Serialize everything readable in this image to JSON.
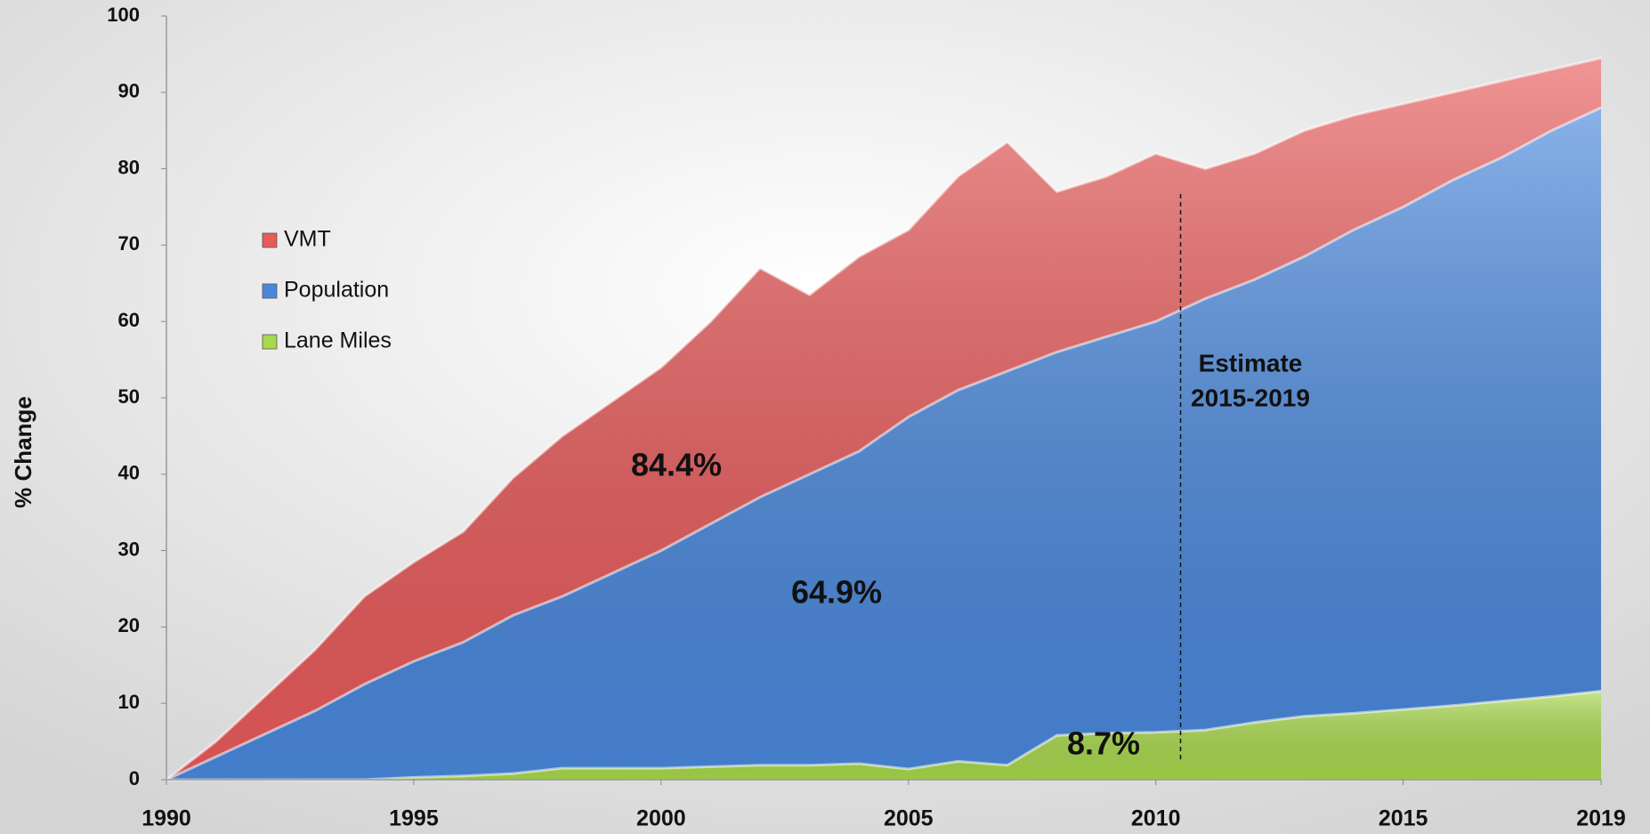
{
  "chart_data": {
    "type": "area",
    "y_label": "% Change",
    "x": [
      1990,
      1991,
      1992,
      1993,
      1994,
      1995,
      1996,
      1997,
      1998,
      1999,
      2000,
      2001,
      2002,
      2003,
      2004,
      2005,
      2006,
      2007,
      2008,
      2009,
      2010,
      2011,
      2012,
      2013,
      2014,
      2015,
      2016,
      2017,
      2018,
      2019
    ],
    "series": [
      {
        "name": "VMT",
        "color": "#e85b5b",
        "values": [
          0,
          5,
          11,
          17,
          24,
          28.5,
          32.5,
          39.5,
          45,
          49.5,
          54,
          60,
          67,
          63.5,
          68.5,
          72,
          79,
          83.5,
          77,
          79,
          82,
          80,
          82,
          85,
          87,
          88.5,
          90,
          91.5,
          93,
          94.5
        ]
      },
      {
        "name": "Population",
        "color": "#4a88dc",
        "values": [
          0,
          3,
          6,
          9,
          12.5,
          15.5,
          18,
          21.5,
          24,
          27,
          30,
          33.5,
          37,
          40,
          43,
          47.5,
          51,
          53.5,
          56,
          58,
          60,
          63,
          65.5,
          68.5,
          72,
          75,
          78.5,
          81.5,
          85,
          88
        ]
      },
      {
        "name": "Lane Miles",
        "color": "#a8d84c",
        "values": [
          0,
          0,
          0,
          0,
          0,
          0.3,
          0.5,
          0.8,
          1.5,
          1.5,
          1.5,
          1.7,
          1.9,
          1.9,
          2.1,
          1.4,
          2.4,
          1.9,
          5.8,
          6.1,
          6.2,
          6.5,
          7.5,
          8.3,
          8.7,
          9.2,
          9.7,
          10.3,
          10.9,
          11.6
        ]
      }
    ],
    "xlim": [
      1990,
      2019
    ],
    "xticks": [
      1990,
      1995,
      2000,
      2005,
      2010,
      2015,
      2019
    ],
    "ylim": [
      0,
      100
    ],
    "yticks": [
      0,
      10,
      20,
      30,
      40,
      50,
      60,
      70,
      80,
      90,
      100
    ],
    "legend": "upper left",
    "estimate_marker_x": 2010.5,
    "annotations": [
      {
        "text": "84.4%"
      },
      {
        "text": "64.9%"
      },
      {
        "text": "8.7%"
      },
      {
        "lines": [
          "Estimate",
          "2015-2019"
        ]
      }
    ]
  }
}
